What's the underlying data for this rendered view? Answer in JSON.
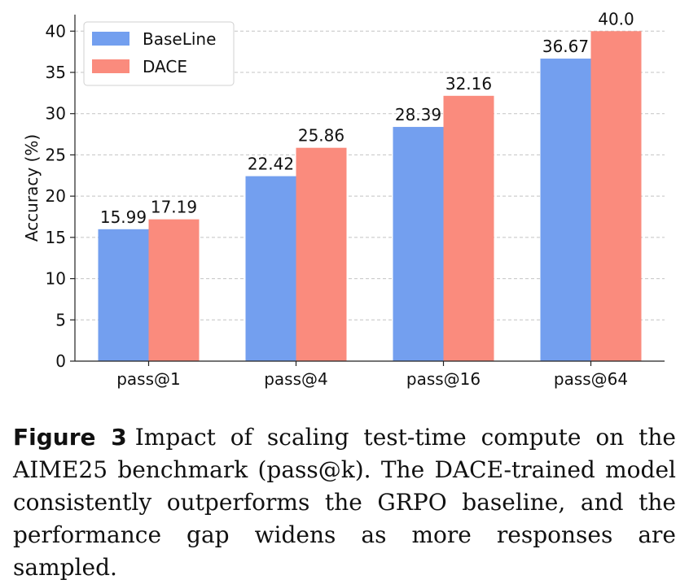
{
  "chart_data": {
    "type": "bar",
    "categories": [
      "pass@1",
      "pass@4",
      "pass@16",
      "pass@64"
    ],
    "series": [
      {
        "name": "BaseLine",
        "values": [
          15.99,
          22.42,
          28.39,
          36.67
        ],
        "labels": [
          "15.99",
          "22.42",
          "28.39",
          "36.67"
        ],
        "color": "#739fef"
      },
      {
        "name": "DACE",
        "values": [
          17.19,
          25.86,
          32.16,
          40.0
        ],
        "labels": [
          "17.19",
          "25.86",
          "32.16",
          "40.0"
        ],
        "color": "#fa8b7d"
      }
    ],
    "title": "",
    "xlabel": "",
    "ylabel": "Accuracy (%)",
    "ylim": [
      0,
      42
    ],
    "yticks": [
      "0",
      "5",
      "10",
      "15",
      "20",
      "25",
      "30",
      "35",
      "40"
    ],
    "grid": true,
    "legend_position": "top-left"
  },
  "caption": {
    "label": "Figure 3",
    "text": "Impact of scaling test-time compute on the AIME25 benchmark (pass@k). The DACE-trained model consistently outperforms the GRPO baseline, and the performance gap widens as more responses are sampled."
  }
}
